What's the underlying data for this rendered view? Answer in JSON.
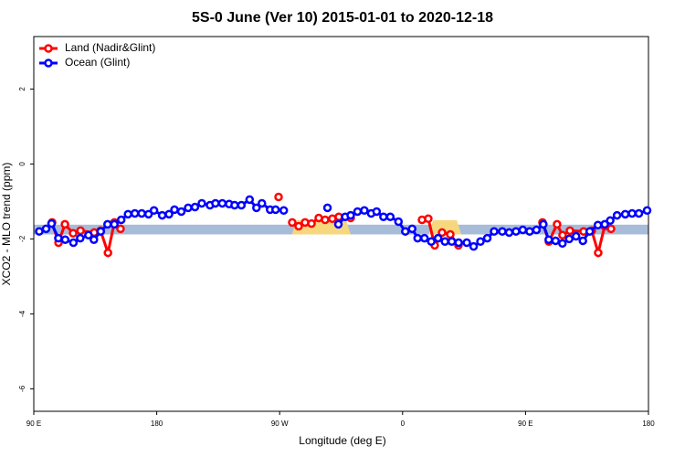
{
  "chart_data": {
    "type": "line",
    "title": "5S-0 June (Ver 10)   2015-01-01 to 2020-12-18",
    "x_label": "Longitude (deg E)",
    "y_label": "XCO2 - MLO trend (ppm)",
    "xlim": [
      90,
      540
    ],
    "ylim": [
      -6.6,
      3.4
    ],
    "xticks": [
      {
        "value": 90,
        "label": "90 E"
      },
      180,
      {
        "value": 270,
        "label": "90 W"
      },
      {
        "value": 360,
        "label": "0"
      },
      {
        "value": 450,
        "label": "90 E"
      },
      {
        "value": 540,
        "label": "180"
      }
    ],
    "yticks": [
      2,
      0,
      -2,
      -4,
      -6
    ],
    "legend": "top-left",
    "band": {
      "ylim": [
        -1.88,
        -1.62
      ],
      "color": "#a7bcd9"
    },
    "shaded_regions": [
      {
        "xlim": [
          279,
          322
        ],
        "color": "#f7d77e"
      },
      {
        "xlim": [
          379,
          403
        ],
        "color": "#f7d77e"
      }
    ],
    "series": [
      {
        "name": "Land (Nadir&Glint)",
        "color": "#ff0000",
        "x": [
          103.4,
          108.1,
          112.8,
          118.8,
          124.2,
          134.2,
          138.9,
          144.3,
          149,
          153.5,
          null,
          269.2,
          null,
          279.2,
          283.9,
          288.6,
          293.3,
          298.6,
          303.3,
          308.6,
          313.3,
          322,
          null,
          374.2,
          378.8,
          383.5,
          388.9,
          394.9,
          400.9,
          null,
          462.4,
          467.1,
          473.1,
          477.1,
          482.5,
          492.5,
          498.5,
          503.2,
          507.9,
          512.6
        ],
        "values": [
          -1.56,
          -2.1,
          -1.61,
          -1.85,
          -1.78,
          -1.83,
          -1.78,
          -2.37,
          -1.56,
          -1.73,
          null,
          -0.88,
          null,
          -1.56,
          -1.66,
          -1.56,
          -1.59,
          -1.44,
          -1.49,
          -1.46,
          -1.41,
          -1.44,
          null,
          -1.49,
          -1.46,
          -2.17,
          -1.83,
          -1.88,
          -2.17,
          null,
          -1.56,
          -2.07,
          -1.61,
          -1.9,
          -1.78,
          -1.8,
          -1.78,
          -2.37,
          -1.66,
          -1.73
        ]
      },
      {
        "name": "Ocean (Glint)",
        "color": "#0000ff",
        "x": [
          94,
          99,
          103,
          108,
          113,
          119,
          124,
          130,
          134,
          139,
          144,
          149,
          154,
          159,
          164,
          169,
          174,
          178,
          184,
          189,
          193,
          198,
          203,
          208,
          213,
          219,
          223,
          228,
          233,
          237,
          242,
          248,
          253,
          257,
          263,
          267,
          273,
          null,
          305,
          null,
          313,
          318,
          322,
          327,
          332,
          337,
          341,
          346,
          351,
          357,
          362,
          367,
          371,
          376,
          381,
          386,
          391,
          396,
          401,
          407,
          412,
          417,
          422,
          427,
          433,
          438,
          443,
          448,
          453,
          458,
          463,
          467,
          472,
          477,
          482,
          487,
          492,
          497,
          503,
          508,
          512,
          517,
          523,
          528,
          533,
          539
        ],
        "values": [
          -1.8,
          -1.73,
          -1.59,
          -1.98,
          -2.02,
          -2.1,
          -1.98,
          -1.9,
          -2.02,
          -1.8,
          -1.61,
          -1.61,
          -1.49,
          -1.34,
          -1.32,
          -1.32,
          -1.34,
          -1.24,
          -1.37,
          -1.34,
          -1.22,
          -1.27,
          -1.17,
          -1.15,
          -1.05,
          -1.1,
          -1.05,
          -1.05,
          -1.07,
          -1.1,
          -1.1,
          -0.95,
          -1.17,
          -1.05,
          -1.22,
          -1.22,
          -1.24,
          null,
          -1.17,
          null,
          -1.61,
          -1.41,
          -1.37,
          -1.27,
          -1.24,
          -1.32,
          -1.27,
          -1.41,
          -1.41,
          -1.54,
          -1.8,
          -1.73,
          -1.98,
          -1.98,
          -2.07,
          -1.98,
          -2.07,
          -2.07,
          -2.1,
          -2.1,
          -2.2,
          -2.07,
          -1.98,
          -1.8,
          -1.8,
          -1.83,
          -1.8,
          -1.76,
          -1.8,
          -1.76,
          -1.61,
          -2.02,
          -2.05,
          -2.12,
          -2.0,
          -1.93,
          -2.05,
          -1.8,
          -1.63,
          -1.61,
          -1.51,
          -1.37,
          -1.34,
          -1.32,
          -1.32,
          -1.24
        ]
      }
    ]
  }
}
